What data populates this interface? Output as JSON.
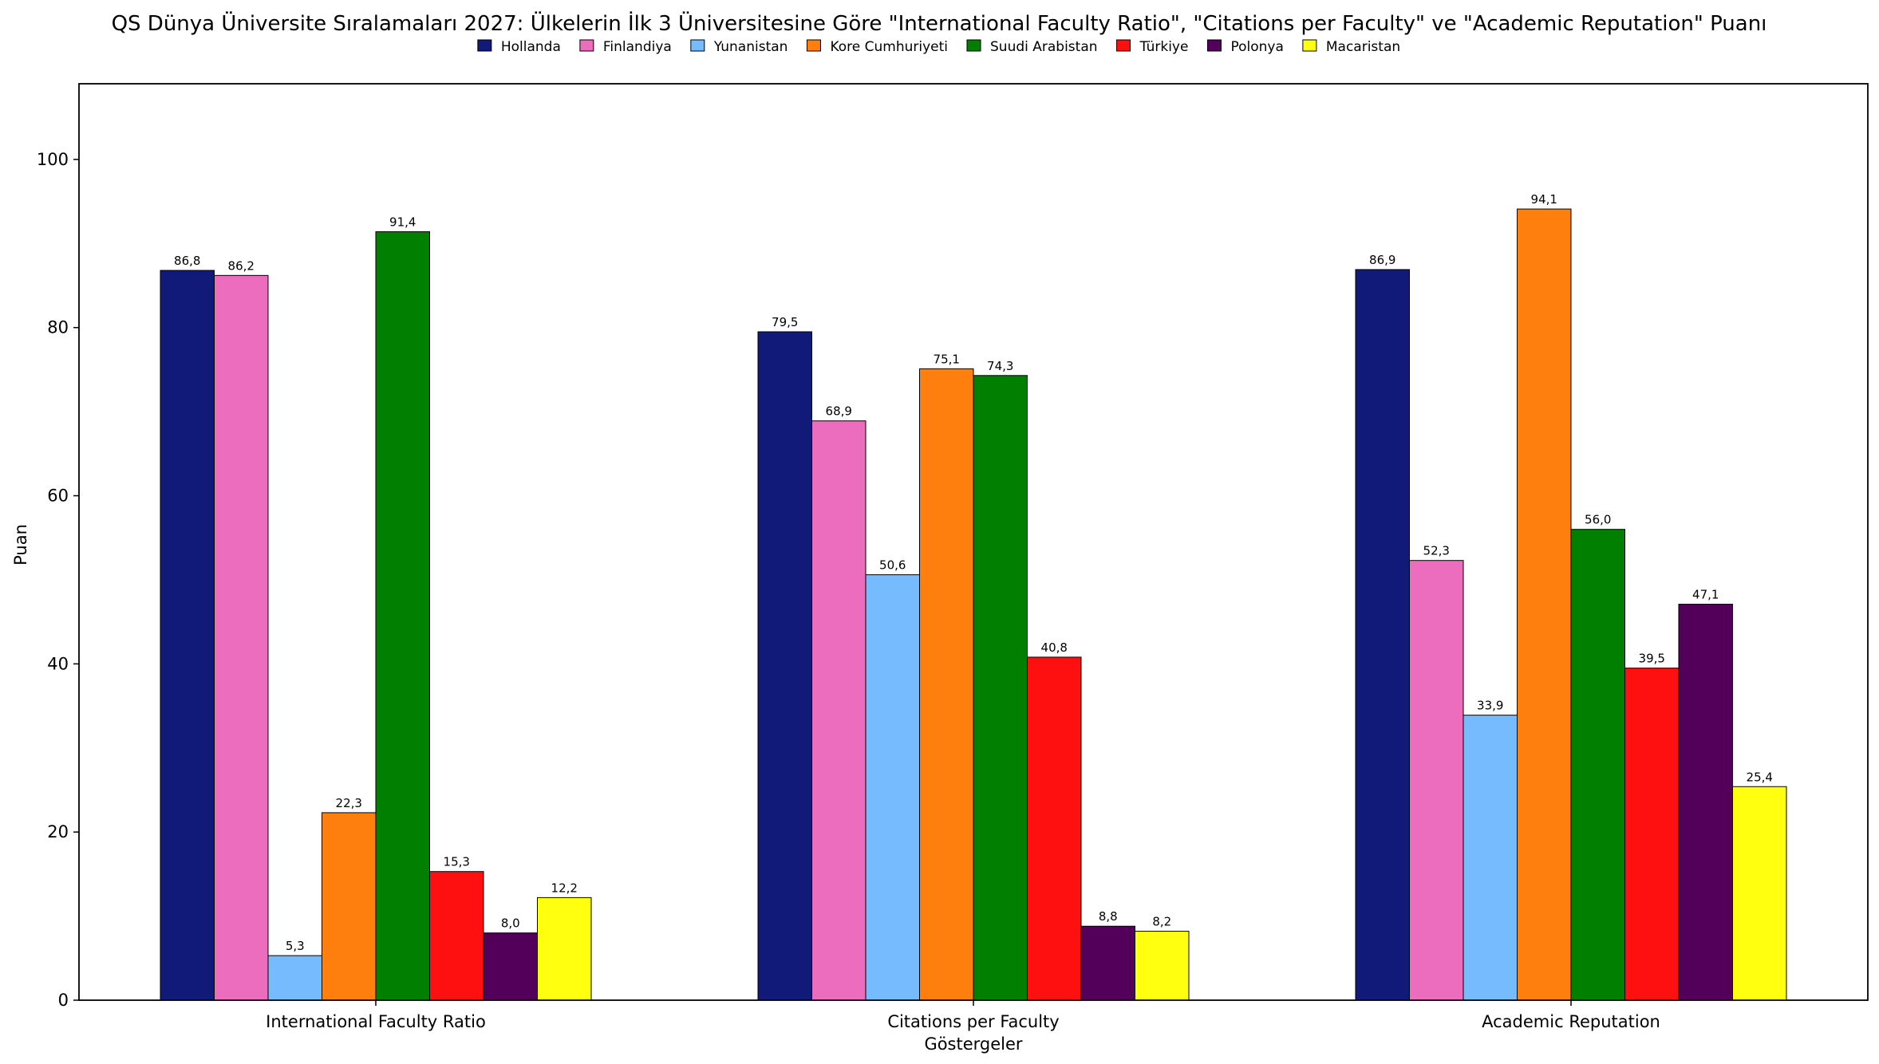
{
  "chart_data": {
    "type": "bar",
    "title": "QS Dünya Üniversite Sıralamaları 2027: Ülkelerin İlk 3 Üniversitesine Göre \"International Faculty Ratio\", \"Citations per Faculty\" ve \"Academic Reputation\" Puanı",
    "xlabel": "Göstergeler",
    "ylabel": "Puan",
    "ylim": [
      0,
      109
    ],
    "yticks": [
      0,
      20,
      40,
      60,
      80,
      100
    ],
    "grid": false,
    "legend_position": "top-center",
    "categories": [
      "International Faculty Ratio",
      "Citations per Faculty",
      "Academic Reputation"
    ],
    "series": [
      {
        "name": "Hollanda",
        "color": "#111a78",
        "values": [
          86.8,
          79.5,
          86.9
        ],
        "labels": [
          "86,8",
          "79,5",
          "86,9"
        ]
      },
      {
        "name": "Finlandiya",
        "color": "#ec6dbd",
        "values": [
          86.2,
          68.9,
          52.3
        ],
        "labels": [
          "86,2",
          "68,9",
          "52,3"
        ]
      },
      {
        "name": "Yunanistan",
        "color": "#76bbfe",
        "values": [
          5.3,
          50.6,
          33.9
        ],
        "labels": [
          "5,3",
          "50,6",
          "33,9"
        ]
      },
      {
        "name": "Kore Cumhuriyeti",
        "color": "#fe7f0e",
        "values": [
          22.3,
          75.1,
          94.1
        ],
        "labels": [
          "22,3",
          "75,1",
          "94,1"
        ]
      },
      {
        "name": "Suudi Arabistan",
        "color": "#017f01",
        "values": [
          91.4,
          74.3,
          56.0
        ],
        "labels": [
          "91,4",
          "74,3",
          "56,0"
        ]
      },
      {
        "name": "Türkiye",
        "color": "#fe1010",
        "values": [
          15.3,
          40.8,
          39.5
        ],
        "labels": [
          "15,3",
          "40,8",
          "39,5"
        ]
      },
      {
        "name": "Polonya",
        "color": "#52005a",
        "values": [
          8.0,
          8.8,
          47.1
        ],
        "labels": [
          "8,0",
          "8,8",
          "47,1"
        ]
      },
      {
        "name": "Macaristan",
        "color": "#ffff10",
        "values": [
          12.2,
          8.2,
          25.4
        ],
        "labels": [
          "12,2",
          "8,2",
          "25,4"
        ]
      }
    ]
  }
}
